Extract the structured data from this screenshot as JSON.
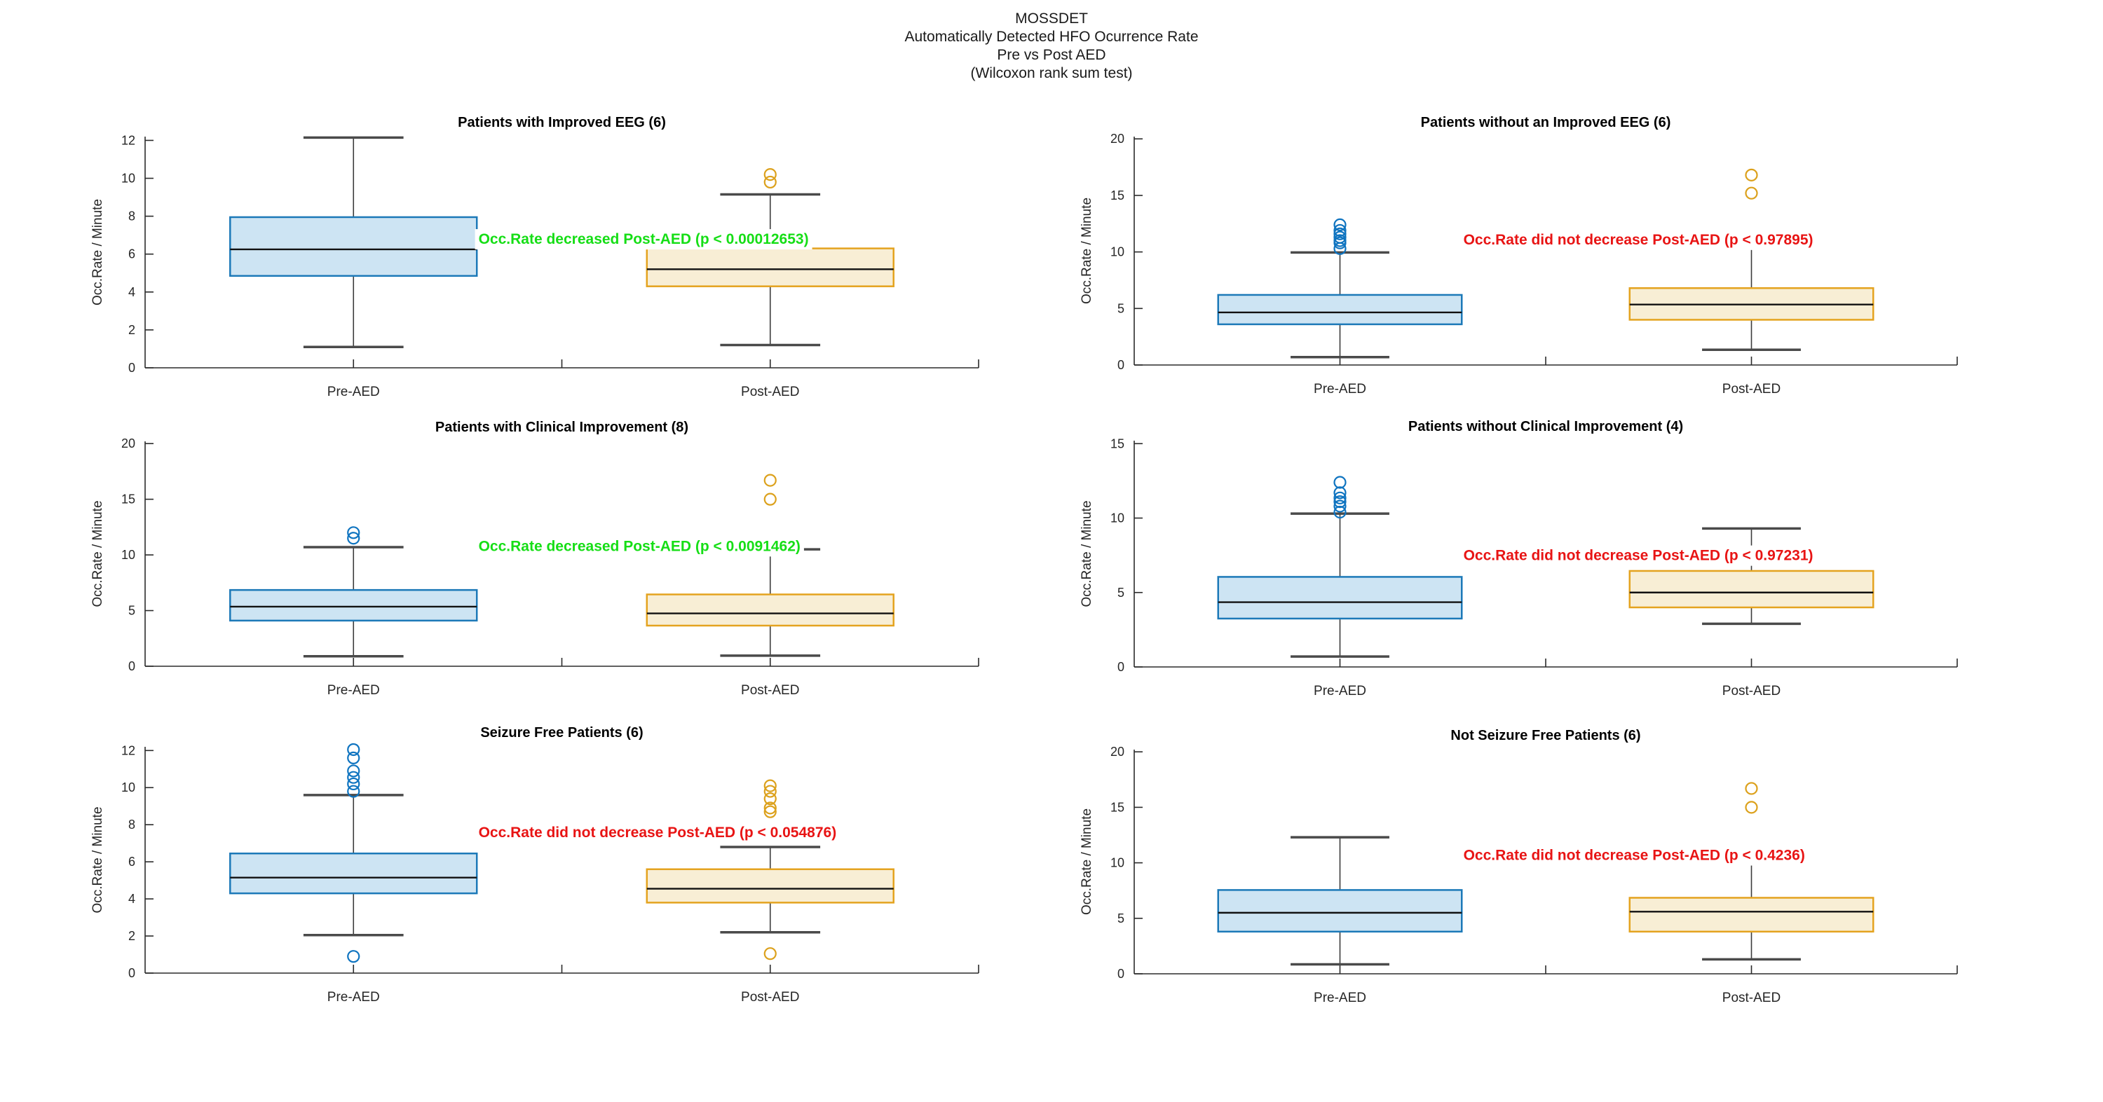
{
  "figure": {
    "title_lines": [
      "MOSSDET",
      "Automatically Detected HFO Ocurrence Rate",
      "Pre vs Post AED",
      "(Wilcoxon rank sum test)"
    ]
  },
  "colors": {
    "pre_fill": "#CDE4F3",
    "pre_edge": "#1C79B8",
    "pre_outlier": "#0F74C0",
    "post_fill": "#F8EED5",
    "post_edge": "#E4A31F",
    "post_outlier": "#DCA11C",
    "median": "#111111",
    "whisker": "#3C3C3C",
    "sig_green": "#16DE16",
    "sig_red": "#E81414",
    "axis": "#2B2B2B"
  },
  "chart_data": [
    {
      "type": "box",
      "title": "Patients with Improved EEG (6)",
      "ylabel": "Occ.Rate / Minute",
      "xlabel": "",
      "ylim": [
        0,
        12.2
      ],
      "yticks": [
        0,
        2,
        4,
        6,
        8,
        10,
        12
      ],
      "categories": [
        "Pre-AED",
        "Post-AED"
      ],
      "series": [
        {
          "name": "Pre-AED",
          "group": "pre",
          "whisker_low": 1.1,
          "q1": 4.85,
          "median": 6.25,
          "q3": 7.95,
          "whisker_high": 12.15,
          "outliers": []
        },
        {
          "name": "Post-AED",
          "group": "post",
          "whisker_low": 1.2,
          "q1": 4.3,
          "median": 5.2,
          "q3": 6.3,
          "whisker_high": 9.15,
          "outliers": [
            9.8,
            10.2
          ]
        }
      ],
      "annotation": {
        "text": "Occ.Rate decreased Post-AED (p < 0.00012653)",
        "significant": true,
        "y": 6.8
      }
    },
    {
      "type": "box",
      "title": "Patients without an Improved EEG (6)",
      "ylabel": "Occ.Rate / Minute",
      "xlabel": "",
      "ylim": [
        0,
        20.2
      ],
      "yticks": [
        0,
        5,
        10,
        15,
        20
      ],
      "categories": [
        "Pre-AED",
        "Post-AED"
      ],
      "series": [
        {
          "name": "Pre-AED",
          "group": "pre",
          "whisker_low": 0.7,
          "q1": 3.6,
          "median": 4.65,
          "q3": 6.2,
          "whisker_high": 9.95,
          "outliers": [
            10.3,
            10.8,
            11.0,
            11.3,
            11.6,
            11.9,
            12.4
          ]
        },
        {
          "name": "Post-AED",
          "group": "post",
          "whisker_low": 1.35,
          "q1": 4.0,
          "median": 5.35,
          "q3": 6.8,
          "whisker_high": 10.3,
          "outliers": [
            15.2,
            16.8
          ]
        }
      ],
      "annotation": {
        "text": "Occ.Rate did not decrease Post-AED (p < 0.97895)",
        "significant": false,
        "y": 11.1
      }
    },
    {
      "type": "box",
      "title": "Patients with Clinical Improvement (8)",
      "ylabel": "Occ.Rate / Minute",
      "xlabel": "",
      "ylim": [
        0,
        20.2
      ],
      "yticks": [
        0,
        5,
        10,
        15,
        20
      ],
      "categories": [
        "Pre-AED",
        "Post-AED"
      ],
      "series": [
        {
          "name": "Pre-AED",
          "group": "pre",
          "whisker_low": 0.9,
          "q1": 4.1,
          "median": 5.35,
          "q3": 6.85,
          "whisker_high": 10.7,
          "outliers": [
            11.5,
            12.0
          ]
        },
        {
          "name": "Post-AED",
          "group": "post",
          "whisker_low": 0.95,
          "q1": 3.65,
          "median": 4.75,
          "q3": 6.45,
          "whisker_high": 10.5,
          "outliers": [
            15.0,
            16.7
          ]
        }
      ],
      "annotation": {
        "text": "Occ.Rate decreased Post-AED (p < 0.0091462)",
        "significant": true,
        "y": 10.8
      }
    },
    {
      "type": "box",
      "title": "Patients without Clinical Improvement (4)",
      "ylabel": "Occ.Rate / Minute",
      "xlabel": "",
      "ylim": [
        0,
        15.2
      ],
      "yticks": [
        0,
        5,
        10,
        15
      ],
      "categories": [
        "Pre-AED",
        "Post-AED"
      ],
      "series": [
        {
          "name": "Pre-AED",
          "group": "pre",
          "whisker_low": 0.7,
          "q1": 3.25,
          "median": 4.35,
          "q3": 6.05,
          "whisker_high": 10.3,
          "outliers": [
            10.4,
            10.8,
            11.1,
            11.35,
            11.7,
            12.4
          ]
        },
        {
          "name": "Post-AED",
          "group": "post",
          "whisker_low": 2.9,
          "q1": 4.0,
          "median": 5.0,
          "q3": 6.45,
          "whisker_high": 9.3,
          "outliers": []
        }
      ],
      "annotation": {
        "text": "Occ.Rate did not decrease Post-AED (p < 0.97231)",
        "significant": false,
        "y": 7.5
      }
    },
    {
      "type": "box",
      "title": "Seizure Free Patients (6)",
      "ylabel": "Occ.Rate / Minute",
      "xlabel": "",
      "ylim": [
        0,
        12.2
      ],
      "yticks": [
        0,
        2,
        4,
        6,
        8,
        10,
        12
      ],
      "categories": [
        "Pre-AED",
        "Post-AED"
      ],
      "series": [
        {
          "name": "Pre-AED",
          "group": "pre",
          "whisker_low": 2.05,
          "q1": 4.3,
          "median": 5.15,
          "q3": 6.45,
          "whisker_high": 9.6,
          "outliers": [
            0.9,
            9.8,
            10.2,
            10.55,
            10.9,
            11.6,
            12.05
          ]
        },
        {
          "name": "Post-AED",
          "group": "post",
          "whisker_low": 2.2,
          "q1": 3.8,
          "median": 4.55,
          "q3": 5.6,
          "whisker_high": 6.8,
          "outliers": [
            1.05,
            8.7,
            8.9,
            9.4,
            9.8,
            10.1
          ]
        }
      ],
      "annotation": {
        "text": "Occ.Rate did not decrease Post-AED (p < 0.054876)",
        "significant": false,
        "y": 7.6
      }
    },
    {
      "type": "box",
      "title": "Not Seizure Free Patients (6)",
      "ylabel": "Occ.Rate / Minute",
      "xlabel": "",
      "ylim": [
        0,
        20.2
      ],
      "yticks": [
        0,
        5,
        10,
        15,
        20
      ],
      "categories": [
        "Pre-AED",
        "Post-AED"
      ],
      "series": [
        {
          "name": "Pre-AED",
          "group": "pre",
          "whisker_low": 0.85,
          "q1": 3.8,
          "median": 5.5,
          "q3": 7.55,
          "whisker_high": 12.3,
          "outliers": []
        },
        {
          "name": "Post-AED",
          "group": "post",
          "whisker_low": 1.3,
          "q1": 3.8,
          "median": 5.6,
          "q3": 6.85,
          "whisker_high": 10.2,
          "outliers": [
            15.0,
            16.7
          ]
        }
      ],
      "annotation": {
        "text": "Occ.Rate did not decrease Post-AED (p < 0.4236)",
        "significant": false,
        "y": 10.7
      }
    }
  ]
}
